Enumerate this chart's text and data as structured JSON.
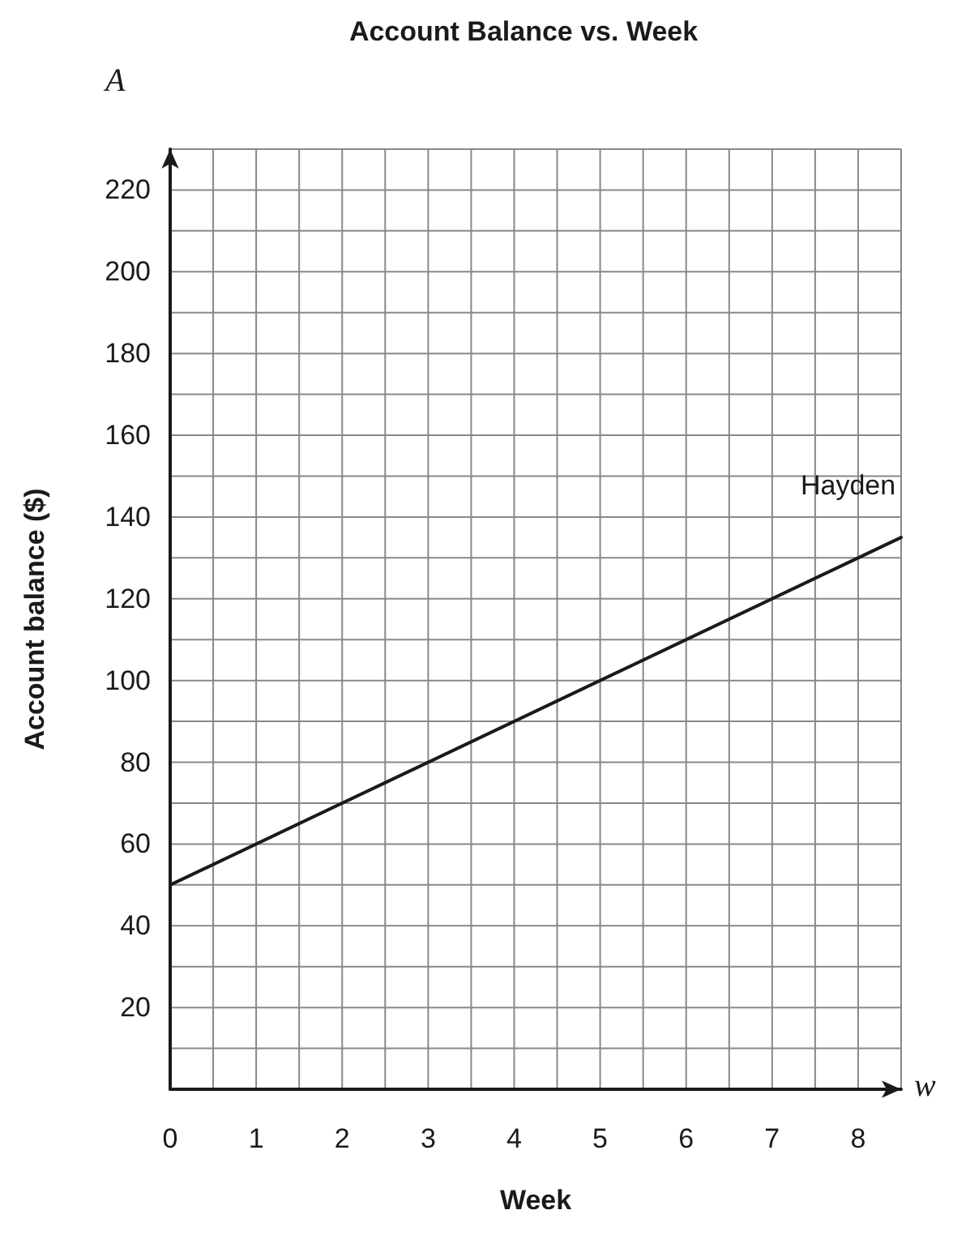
{
  "chart_data": {
    "type": "line",
    "title": "Account Balance vs. Week",
    "xlabel": "Week",
    "ylabel": "Account balance ($)",
    "annotations": [
      "A",
      "w"
    ],
    "x": [
      0,
      8.5
    ],
    "series": [
      {
        "name": "Hayden",
        "color": "#1a1a1a",
        "values": [
          50,
          135
        ]
      }
    ],
    "xlim": [
      0,
      8.5
    ],
    "xticks": [
      {
        "value": 0,
        "label": "0"
      },
      {
        "value": 0.5,
        "label": null
      },
      1,
      {
        "value": 1.5,
        "label": null
      },
      2,
      {
        "value": 2.5,
        "label": null
      },
      3,
      {
        "value": 3.5,
        "label": null
      },
      4,
      {
        "value": 4.5,
        "label": null
      },
      5,
      {
        "value": 5.5,
        "label": null
      },
      6,
      {
        "value": 6.5,
        "label": null
      },
      7,
      {
        "value": 7.5,
        "label": null
      },
      8,
      {
        "value": 8.5,
        "label": null
      }
    ],
    "ylim": [
      0,
      230
    ],
    "yticks": [
      {
        "value": 0,
        "label": null
      },
      {
        "value": 10,
        "label": null
      },
      20,
      {
        "value": 30,
        "label": null
      },
      40,
      {
        "value": 50,
        "label": null
      },
      60,
      {
        "value": 70,
        "label": null
      },
      80,
      {
        "value": 90,
        "label": null
      },
      100,
      {
        "value": 110,
        "label": null
      },
      120,
      {
        "value": 130,
        "label": null
      },
      140,
      {
        "value": 150,
        "label": null
      },
      160,
      {
        "value": 170,
        "label": null
      },
      180,
      {
        "value": 190,
        "label": null
      },
      200,
      {
        "value": 210,
        "label": null
      },
      220,
      {
        "value": 230,
        "label": null
      }
    ],
    "grid": true,
    "legend": false,
    "marker": "none",
    "line_style": "solid"
  }
}
